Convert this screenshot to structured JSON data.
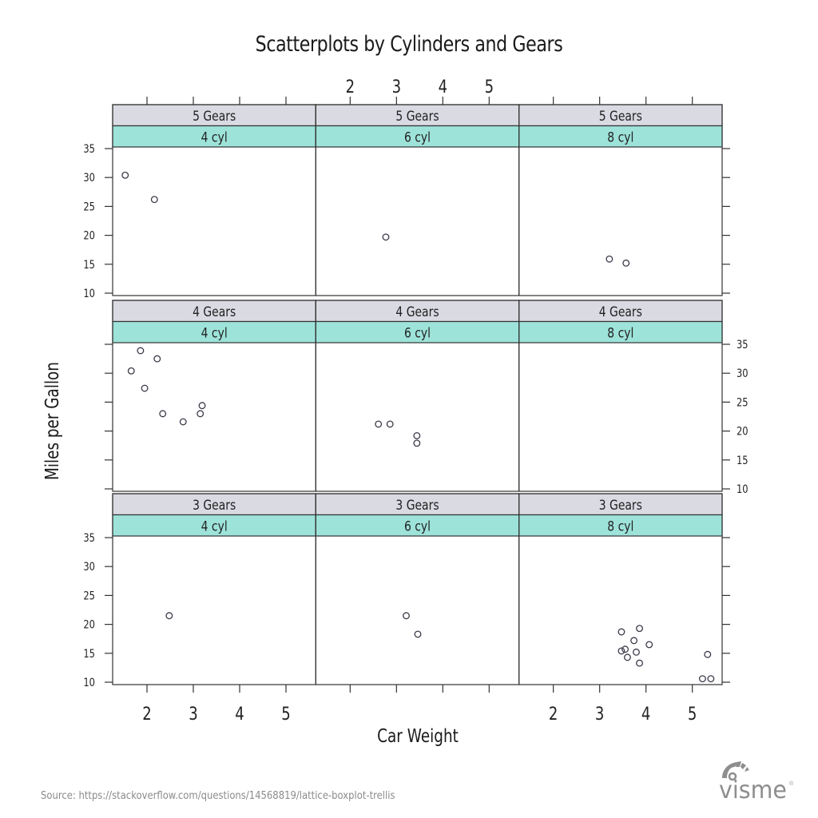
{
  "title": "Scatterplots by Cylinders and Gears",
  "x_axis_label": "Car Weight",
  "y_axis_label": "Miles per Gallon",
  "source": "Source: https://stackoverflow.com/questions/14568819/lattice-boxplot-trellis",
  "logo": {
    "text": "visme",
    "registered": "®"
  },
  "colors": {
    "gear_strip": "#d9dae2",
    "cyl_strip": "#9de3da",
    "frame": "#333333",
    "point": "#3a3a4a",
    "tick_label": "#222222"
  },
  "chart_data": {
    "type": "scatter",
    "layout": "trellis 3x3",
    "title": "Scatterplots by Cylinders and Gears",
    "xlabel": "Car Weight",
    "ylabel": "Miles per Gallon",
    "xlim": [
      1.3,
      5.7
    ],
    "ylim": [
      9.5,
      35.5
    ],
    "x_ticks": [
      2,
      3,
      4,
      5
    ],
    "y_ticks": [
      10,
      15,
      20,
      25,
      30,
      35
    ],
    "rows": [
      "5 Gears",
      "4 Gears",
      "3 Gears"
    ],
    "columns": [
      "4 cyl",
      "6 cyl",
      "8 cyl"
    ],
    "panels": [
      {
        "gears": "5 Gears",
        "cyl": "4 cyl",
        "row": 0,
        "col": 0,
        "points": [
          [
            1.53,
            30.4
          ],
          [
            2.16,
            26.2
          ]
        ]
      },
      {
        "gears": "5 Gears",
        "cyl": "6 cyl",
        "row": 0,
        "col": 1,
        "points": [
          [
            2.77,
            19.7
          ]
        ]
      },
      {
        "gears": "5 Gears",
        "cyl": "8 cyl",
        "row": 0,
        "col": 2,
        "points": [
          [
            3.21,
            15.9
          ],
          [
            3.57,
            15.2
          ]
        ]
      },
      {
        "gears": "4 Gears",
        "cyl": "4 cyl",
        "row": 1,
        "col": 0,
        "points": [
          [
            1.86,
            33.9
          ],
          [
            2.22,
            32.5
          ],
          [
            1.66,
            30.4
          ],
          [
            1.95,
            27.4
          ],
          [
            2.34,
            23.0
          ],
          [
            2.78,
            21.6
          ],
          [
            3.15,
            23.0
          ],
          [
            3.19,
            24.4
          ]
        ]
      },
      {
        "gears": "4 Gears",
        "cyl": "6 cyl",
        "row": 1,
        "col": 1,
        "points": [
          [
            2.61,
            21.2
          ],
          [
            2.86,
            21.2
          ],
          [
            3.44,
            19.2
          ],
          [
            3.44,
            17.9
          ]
        ]
      },
      {
        "gears": "4 Gears",
        "cyl": "8 cyl",
        "row": 1,
        "col": 2,
        "points": []
      },
      {
        "gears": "3 Gears",
        "cyl": "4 cyl",
        "row": 2,
        "col": 0,
        "points": [
          [
            2.48,
            21.5
          ]
        ]
      },
      {
        "gears": "3 Gears",
        "cyl": "6 cyl",
        "row": 2,
        "col": 1,
        "points": [
          [
            3.21,
            21.5
          ],
          [
            3.46,
            18.3
          ]
        ]
      },
      {
        "gears": "3 Gears",
        "cyl": "8 cyl",
        "row": 2,
        "col": 2,
        "points": [
          [
            3.47,
            18.7
          ],
          [
            3.86,
            19.3
          ],
          [
            3.74,
            17.2
          ],
          [
            4.07,
            16.5
          ],
          [
            3.47,
            15.4
          ],
          [
            3.55,
            15.7
          ],
          [
            3.79,
            15.2
          ],
          [
            3.6,
            14.3
          ],
          [
            3.86,
            13.3
          ],
          [
            5.33,
            14.8
          ],
          [
            5.22,
            10.6
          ],
          [
            5.4,
            10.6
          ]
        ]
      }
    ],
    "axis_labels_placement": {
      "top_x_labels_column": 1,
      "bottom_x_labels_columns": [
        0,
        2
      ],
      "left_y_labels_rows": [
        0,
        2
      ],
      "right_y_labels_rows": [
        1
      ]
    }
  }
}
